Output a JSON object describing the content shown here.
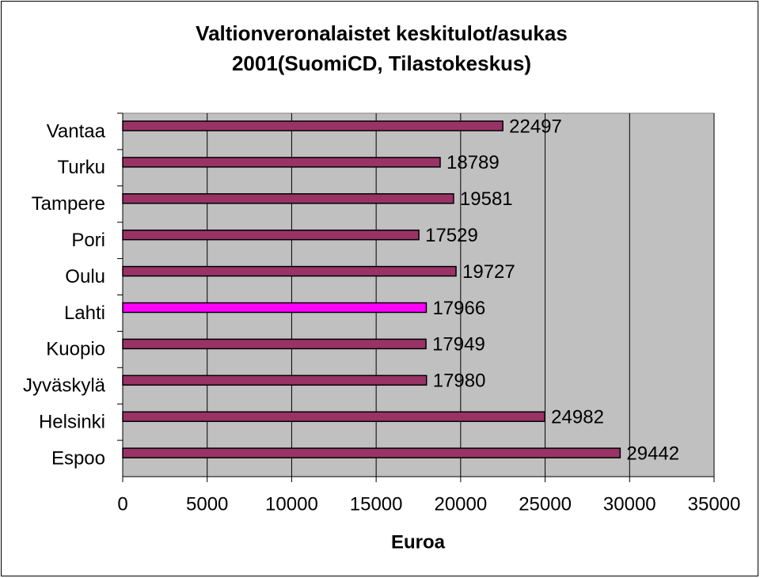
{
  "chart_data": {
    "type": "bar",
    "orientation": "horizontal",
    "title": [
      "Valtionveronalaistet keskitulot/asukas",
      "2001(SuomiCD, Tilastokeskus)"
    ],
    "x_label": "Euroa",
    "categories": [
      "Vantaa",
      "Turku",
      "Tampere",
      "Pori",
      "Oulu",
      "Lahti",
      "Kuopio",
      "Jyväskylä",
      "Helsinki",
      "Espoo"
    ],
    "values": [
      22497,
      18789,
      19581,
      17529,
      19727,
      17966,
      17949,
      17980,
      24982,
      29442
    ],
    "colors": [
      "#993366",
      "#993366",
      "#993366",
      "#993366",
      "#993366",
      "#ff00ff",
      "#993366",
      "#993366",
      "#993366",
      "#993366"
    ],
    "xlim": [
      0,
      35000
    ],
    "xticks": [
      0,
      5000,
      10000,
      15000,
      20000,
      25000,
      30000,
      35000
    ],
    "grid": true,
    "data_labels": true
  }
}
